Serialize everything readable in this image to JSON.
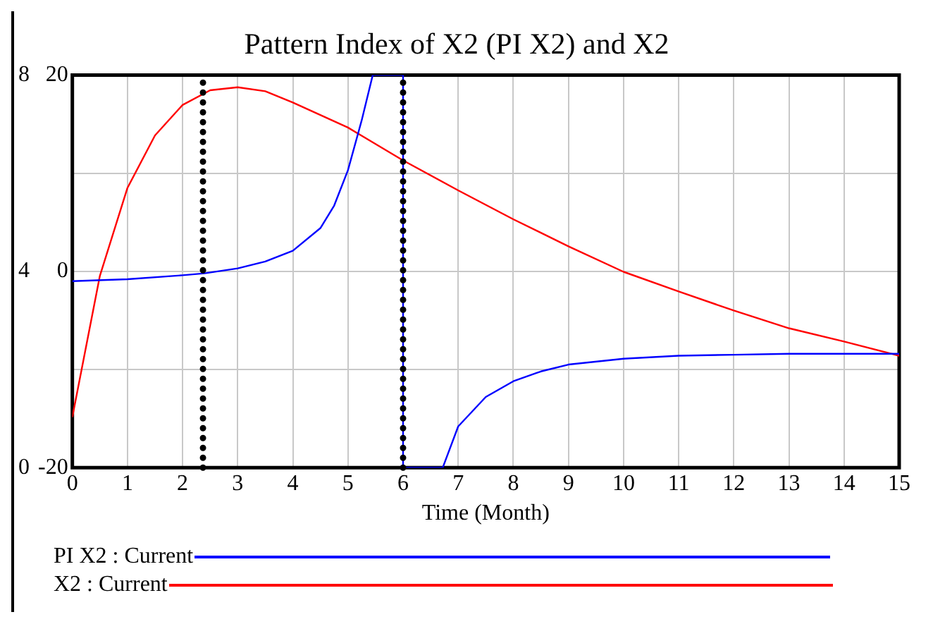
{
  "chart_data": {
    "type": "line",
    "title": "Pattern Index of X2 (PI X2) and X2",
    "xlabel": "Time (Month)",
    "xlim": [
      0,
      15
    ],
    "xticks": [
      0,
      1,
      2,
      3,
      4,
      5,
      6,
      7,
      8,
      9,
      10,
      11,
      12,
      13,
      14,
      15
    ],
    "ylim": [
      -20,
      20
    ],
    "yticks": [
      -20,
      {
        "value": -10,
        "label": null
      },
      0,
      {
        "value": 10,
        "label": null
      },
      20
    ],
    "y2lim": [
      0,
      8
    ],
    "y2ticks": [
      0,
      4,
      8
    ],
    "grid": true,
    "legend": "bottom",
    "series": [
      {
        "name": "PI X2 : Current",
        "color": "#0000ff",
        "x": [
          0,
          1,
          2,
          2.4,
          3,
          3.5,
          4,
          4.5,
          4.75,
          5,
          5.25,
          5.45,
          6,
          6,
          6.72,
          7,
          7.5,
          8,
          8.5,
          9,
          10,
          11,
          12,
          13,
          15
        ],
        "values": [
          -1,
          -0.8,
          -0.4,
          -0.2,
          0.3,
          1,
          2.1,
          4.4,
          6.7,
          10.3,
          15.4,
          20,
          20,
          -20,
          -20,
          -15.8,
          -12.8,
          -11.2,
          -10.2,
          -9.5,
          -8.9,
          -8.6,
          -8.5,
          -8.4,
          -8.4
        ]
      },
      {
        "name": "X2 : Current",
        "color": "#ff0000",
        "axis": "y2",
        "x": [
          0,
          0.5,
          1,
          1.5,
          2,
          2.5,
          3,
          3.5,
          4,
          5,
          6,
          7,
          8,
          9,
          10,
          11,
          12,
          13,
          14,
          15
        ],
        "values": [
          1.03,
          3.91,
          5.7,
          6.77,
          7.39,
          7.69,
          7.75,
          7.67,
          7.44,
          6.93,
          6.26,
          5.65,
          5.06,
          4.51,
          3.99,
          3.59,
          3.2,
          2.84,
          2.57,
          2.28
        ]
      }
    ],
    "ref_lines": [
      {
        "axis": "x",
        "value": 2.37,
        "line_style": "dotted",
        "color": "#000000"
      },
      {
        "axis": "x",
        "value": 6,
        "line_style": "dotted",
        "color": "#000000"
      }
    ]
  }
}
